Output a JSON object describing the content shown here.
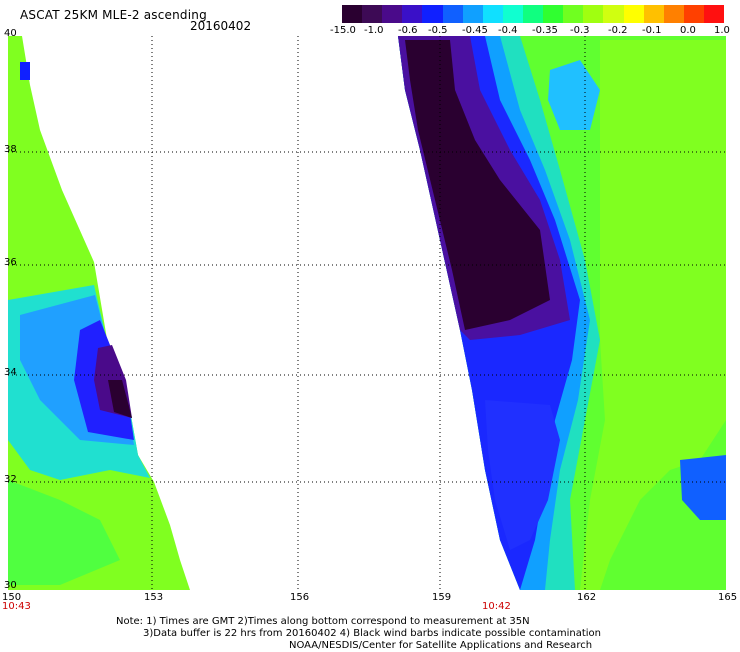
{
  "header": {
    "title": "ASCAT 25KM MLE-2 ascending",
    "date": "20160402"
  },
  "colorbar": {
    "labels": [
      "-15.0",
      "-1.0",
      "-0.6",
      "-0.5",
      "-0.45",
      "-0.4",
      "-0.35",
      "-0.3",
      "-0.2",
      "-0.1",
      "0.0",
      "1.0"
    ],
    "colors": [
      "#2a0030",
      "#3d0a55",
      "#4a0a8a",
      "#3a10c8",
      "#1020ff",
      "#1060ff",
      "#10a0ff",
      "#10e0ff",
      "#10ffd0",
      "#10ff80",
      "#30ff30",
      "#70ff20",
      "#a0ff10",
      "#d0ff10",
      "#ffff00",
      "#ffc000",
      "#ff8000",
      "#ff4000",
      "#ff1010"
    ]
  },
  "map": {
    "lon_ticks": [
      "150",
      "153",
      "156",
      "159",
      "162",
      "165"
    ],
    "lat_ticks": [
      "40",
      "38",
      "36",
      "34",
      "32",
      "30"
    ],
    "pass_times": [
      "10:43",
      "10:42"
    ]
  },
  "notes": {
    "line1": "Note: 1) Times are GMT 2)Times along bottom correspond to measurement at 35N",
    "line2": "3)Data buffer is 22 hrs from 20160402 4) Black wind barbs indicate possible contamination",
    "line3": "NOAA/NESDIS/Center for Satellite Applications and Research"
  }
}
